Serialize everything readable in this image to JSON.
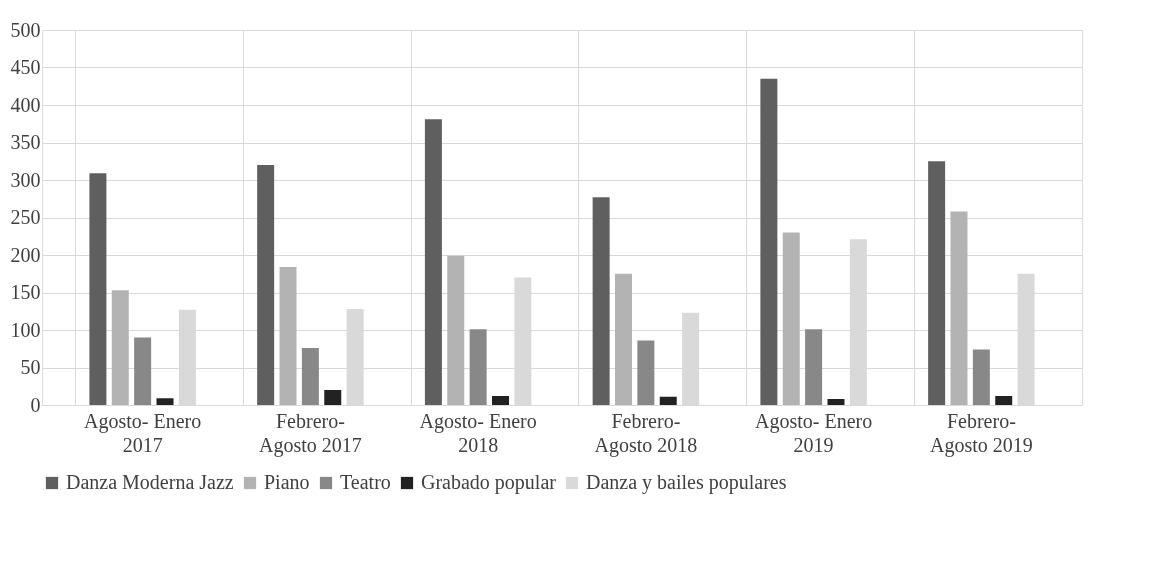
{
  "chart_data": {
    "type": "bar",
    "categories": [
      "Agosto- Enero 2017",
      "Febrero- Agosto 2017",
      "Agosto- Enero 2018",
      "Febrero- Agosto 2018",
      "Agosto- Enero 2019",
      "Febrero- Agosto 2019"
    ],
    "series": [
      {
        "name": "Danza Moderna Jazz",
        "color": "#5f5f5f",
        "values": [
          309,
          320,
          381,
          277,
          435,
          325
        ]
      },
      {
        "name": "Piano",
        "color": "#b3b3b3",
        "values": [
          153,
          184,
          199,
          175,
          230,
          258
        ]
      },
      {
        "name": "Teatro",
        "color": "#888888",
        "values": [
          90,
          76,
          101,
          86,
          101,
          74
        ]
      },
      {
        "name": "Grabado popular",
        "color": "#222222",
        "values": [
          9,
          20,
          12,
          11,
          8,
          12
        ]
      },
      {
        "name": "Danza y bailes populares",
        "color": "#d9d9d9",
        "values": [
          127,
          128,
          170,
          123,
          221,
          175
        ]
      }
    ],
    "ylim": [
      0,
      500
    ],
    "yticks": [
      0,
      50,
      100,
      150,
      200,
      250,
      300,
      350,
      400,
      450,
      500
    ],
    "grid": true,
    "legend": "bottom"
  }
}
